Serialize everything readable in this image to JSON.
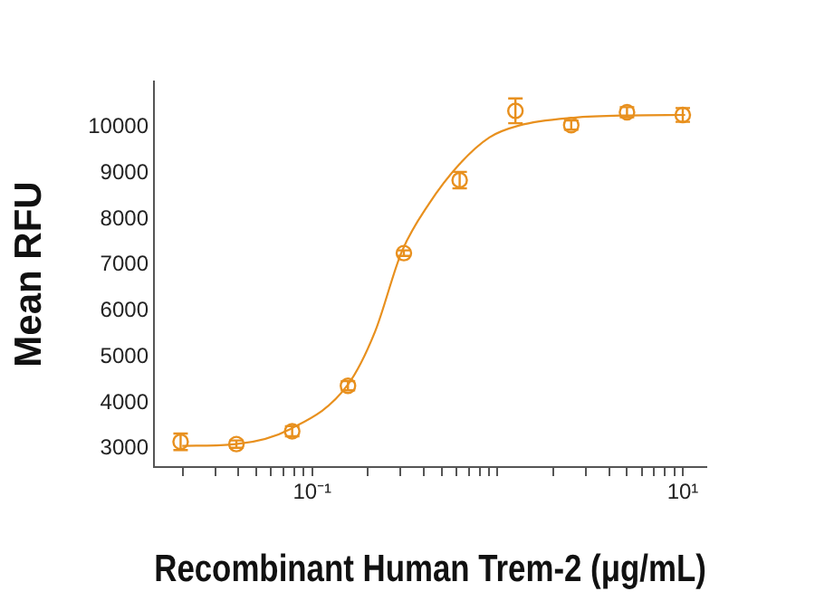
{
  "chart_data": {
    "type": "scatter",
    "xlabel": "Recombinant Human Trem-2 (μg/mL)",
    "ylabel": "Mean RFU",
    "log": "x",
    "grid": false,
    "legend": false,
    "xlim": [
      0.014,
      13.4
    ],
    "ylim": [
      2600,
      11000
    ],
    "xticks": [
      {
        "value": 0.02,
        "label": null
      },
      {
        "value": 0.03,
        "label": null
      },
      {
        "value": 0.04,
        "label": null
      },
      {
        "value": 0.05,
        "label": null
      },
      {
        "value": 0.06,
        "label": null
      },
      {
        "value": 0.07,
        "label": null
      },
      {
        "value": 0.08,
        "label": null
      },
      {
        "value": 0.09,
        "label": null
      },
      {
        "value": 0.1,
        "label": "10⁻¹"
      },
      {
        "value": 0.2,
        "label": null
      },
      {
        "value": 0.3,
        "label": null
      },
      {
        "value": 0.4,
        "label": null
      },
      {
        "value": 0.5,
        "label": null
      },
      {
        "value": 0.6,
        "label": null
      },
      {
        "value": 0.7,
        "label": null
      },
      {
        "value": 0.8,
        "label": null
      },
      {
        "value": 0.9,
        "label": null
      },
      {
        "value": 1,
        "label": null
      },
      {
        "value": 2,
        "label": null
      },
      {
        "value": 3,
        "label": null
      },
      {
        "value": 4,
        "label": null
      },
      {
        "value": 5,
        "label": null
      },
      {
        "value": 6,
        "label": null
      },
      {
        "value": 7,
        "label": null
      },
      {
        "value": 8,
        "label": null
      },
      {
        "value": 9,
        "label": null
      },
      {
        "value": 10,
        "label": "10¹"
      }
    ],
    "yticks": [
      3000,
      4000,
      5000,
      6000,
      7000,
      8000,
      9000,
      10000
    ],
    "series": [
      {
        "marker": "circle",
        "color": "#e8901e",
        "x": [
          0.0195,
          0.039,
          0.078,
          0.156,
          0.3125,
          0.625,
          1.25,
          2.5,
          5,
          10
        ],
        "values": [
          3150,
          3100,
          3380,
          4370,
          7260,
          8850,
          10360,
          10050,
          10330,
          10270
        ],
        "errors": [
          180,
          80,
          110,
          100,
          60,
          180,
          270,
          100,
          110,
          150
        ]
      },
      {
        "type": "line",
        "marker": "none",
        "color": "#e8901e",
        "x": [
          0.0199,
          0.0389,
          0.0764,
          0.1556,
          0.218,
          0.305,
          0.428,
          0.621,
          0.904,
          1.31,
          2.58,
          5.06,
          10.3
        ],
        "values": [
          3060,
          3100,
          3430,
          4390,
          5540,
          7300,
          8340,
          9190,
          9780,
          10040,
          10210,
          10260,
          10270
        ]
      }
    ]
  }
}
